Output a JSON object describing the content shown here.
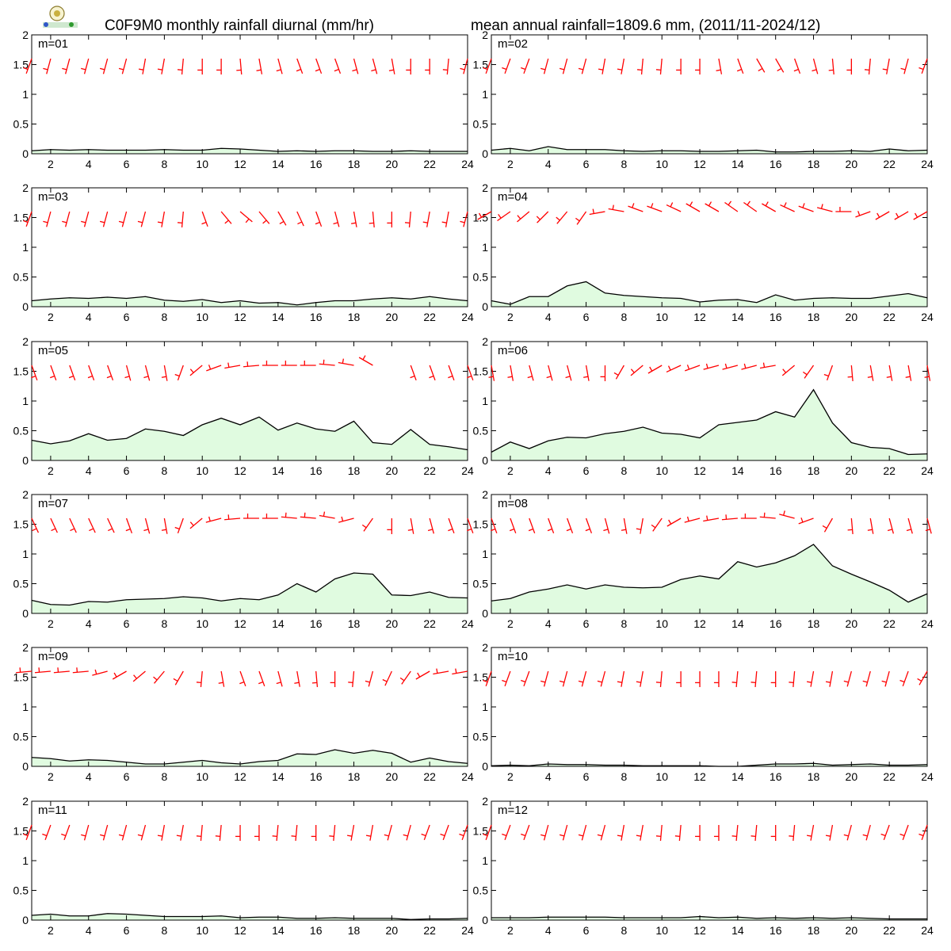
{
  "figure": {
    "title_left": "C0F9M0 monthly rainfall diurnal (mm/hr)",
    "title_right": "mean annual rainfall=1809.6 mm, (2011/11-2024/12)",
    "logo": "lab-logo",
    "colors": {
      "fill": "#e0fbe0",
      "line": "#000000",
      "barb": "#ff0000",
      "frame": "#000000"
    }
  },
  "chart_data": [
    {
      "type": "area",
      "label": "m=01",
      "x": [
        1,
        2,
        3,
        4,
        5,
        6,
        7,
        8,
        9,
        10,
        11,
        12,
        13,
        14,
        15,
        16,
        17,
        18,
        19,
        20,
        21,
        22,
        23,
        24
      ],
      "xlim": [
        1,
        24
      ],
      "ylim": [
        0,
        2
      ],
      "xticks": [
        2,
        4,
        6,
        8,
        10,
        12,
        14,
        16,
        18,
        20,
        22,
        24
      ],
      "yticks": [
        0,
        0.5,
        1,
        1.5,
        2
      ],
      "series": [
        {
          "values": [
            0.05,
            0.07,
            0.06,
            0.07,
            0.06,
            0.06,
            0.06,
            0.07,
            0.06,
            0.06,
            0.09,
            0.08,
            0.06,
            0.04,
            0.05,
            0.04,
            0.05,
            0.05,
            0.04,
            0.04,
            0.05,
            0.04,
            0.04,
            0.04
          ]
        }
      ],
      "wind_dir_deg": [
        200,
        195,
        195,
        195,
        195,
        195,
        190,
        190,
        185,
        180,
        180,
        175,
        170,
        165,
        160,
        160,
        160,
        165,
        165,
        170,
        180,
        180,
        185,
        195
      ]
    },
    {
      "type": "area",
      "label": "m=02",
      "x": [
        1,
        2,
        3,
        4,
        5,
        6,
        7,
        8,
        9,
        10,
        11,
        12,
        13,
        14,
        15,
        16,
        17,
        18,
        19,
        20,
        21,
        22,
        23,
        24
      ],
      "xlim": [
        1,
        24
      ],
      "ylim": [
        0,
        2
      ],
      "xticks": [
        2,
        4,
        6,
        8,
        10,
        12,
        14,
        16,
        18,
        20,
        22,
        24
      ],
      "yticks": [
        0,
        0.5,
        1,
        1.5,
        2
      ],
      "series": [
        {
          "values": [
            0.06,
            0.09,
            0.05,
            0.12,
            0.07,
            0.07,
            0.07,
            0.05,
            0.04,
            0.05,
            0.05,
            0.04,
            0.04,
            0.05,
            0.06,
            0.03,
            0.03,
            0.04,
            0.04,
            0.05,
            0.04,
            0.08,
            0.05,
            0.06
          ]
        }
      ],
      "wind_dir_deg": [
        200,
        200,
        200,
        195,
        195,
        195,
        190,
        190,
        185,
        185,
        180,
        180,
        170,
        160,
        150,
        150,
        160,
        165,
        175,
        180,
        185,
        190,
        195,
        200
      ]
    },
    {
      "type": "area",
      "label": "m=03",
      "x": [
        1,
        2,
        3,
        4,
        5,
        6,
        7,
        8,
        9,
        10,
        11,
        12,
        13,
        14,
        15,
        16,
        17,
        18,
        19,
        20,
        21,
        22,
        23,
        24
      ],
      "xlim": [
        1,
        24
      ],
      "ylim": [
        0,
        2
      ],
      "xticks": [
        2,
        4,
        6,
        8,
        10,
        12,
        14,
        16,
        18,
        20,
        22,
        24
      ],
      "yticks": [
        0,
        0.5,
        1,
        1.5,
        2
      ],
      "series": [
        {
          "values": [
            0.1,
            0.13,
            0.15,
            0.14,
            0.16,
            0.14,
            0.17,
            0.11,
            0.09,
            0.12,
            0.07,
            0.1,
            0.06,
            0.07,
            0.03,
            0.07,
            0.1,
            0.1,
            0.13,
            0.15,
            0.13,
            0.17,
            0.13,
            0.1
          ]
        }
      ],
      "wind_dir_deg": [
        200,
        195,
        195,
        195,
        195,
        195,
        195,
        190,
        185,
        160,
        140,
        130,
        140,
        150,
        155,
        160,
        165,
        170,
        175,
        180,
        185,
        190,
        190,
        195
      ]
    },
    {
      "type": "area",
      "label": "m=04",
      "x": [
        1,
        2,
        3,
        4,
        5,
        6,
        7,
        8,
        9,
        10,
        11,
        12,
        13,
        14,
        15,
        16,
        17,
        18,
        19,
        20,
        21,
        22,
        23,
        24
      ],
      "xlim": [
        1,
        24
      ],
      "ylim": [
        0,
        2
      ],
      "xticks": [
        2,
        4,
        6,
        8,
        10,
        12,
        14,
        16,
        18,
        20,
        22,
        24
      ],
      "yticks": [
        0,
        0.5,
        1,
        1.5,
        2
      ],
      "series": [
        {
          "values": [
            0.1,
            0.04,
            0.17,
            0.17,
            0.35,
            0.42,
            0.23,
            0.19,
            0.17,
            0.15,
            0.14,
            0.08,
            0.11,
            0.12,
            0.07,
            0.2,
            0.11,
            0.14,
            0.15,
            0.14,
            0.14,
            0.18,
            0.22,
            0.15
          ]
        }
      ],
      "wind_dir_deg": [
        240,
        235,
        230,
        225,
        220,
        215,
        260,
        280,
        290,
        290,
        295,
        300,
        300,
        305,
        305,
        300,
        295,
        290,
        285,
        270,
        250,
        240,
        240,
        240
      ]
    },
    {
      "type": "area",
      "label": "m=05",
      "x": [
        1,
        2,
        3,
        4,
        5,
        6,
        7,
        8,
        9,
        10,
        11,
        12,
        13,
        14,
        15,
        16,
        17,
        18,
        19,
        20,
        21,
        22,
        23,
        24
      ],
      "xlim": [
        1,
        24
      ],
      "ylim": [
        0,
        2
      ],
      "xticks": [
        2,
        4,
        6,
        8,
        10,
        12,
        14,
        16,
        18,
        20,
        22,
        24
      ],
      "yticks": [
        0,
        0.5,
        1,
        1.5,
        2
      ],
      "series": [
        {
          "values": [
            0.34,
            0.28,
            0.33,
            0.45,
            0.34,
            0.37,
            0.53,
            0.49,
            0.42,
            0.6,
            0.71,
            0.6,
            0.73,
            0.51,
            0.63,
            0.53,
            0.49,
            0.66,
            0.3,
            0.27,
            0.52,
            0.27,
            0.23,
            0.18
          ]
        }
      ],
      "wind_dir_deg": [
        160,
        160,
        160,
        160,
        160,
        165,
        165,
        170,
        200,
        230,
        250,
        260,
        265,
        270,
        270,
        270,
        275,
        280,
        300,
        null,
        160,
        160,
        160,
        160
      ]
    },
    {
      "type": "area",
      "label": "m=06",
      "x": [
        1,
        2,
        3,
        4,
        5,
        6,
        7,
        8,
        9,
        10,
        11,
        12,
        13,
        14,
        15,
        16,
        17,
        18,
        19,
        20,
        21,
        22,
        23,
        24
      ],
      "xlim": [
        1,
        24
      ],
      "ylim": [
        0,
        2
      ],
      "xticks": [
        2,
        4,
        6,
        8,
        10,
        12,
        14,
        16,
        18,
        20,
        22,
        24
      ],
      "yticks": [
        0,
        0.5,
        1,
        1.5,
        2
      ],
      "series": [
        {
          "values": [
            0.14,
            0.31,
            0.2,
            0.33,
            0.39,
            0.38,
            0.45,
            0.49,
            0.56,
            0.46,
            0.44,
            0.38,
            0.6,
            0.64,
            0.68,
            0.82,
            0.73,
            1.19,
            0.63,
            0.3,
            0.22,
            0.2,
            0.1,
            0.11
          ]
        }
      ],
      "wind_dir_deg": [
        170,
        170,
        165,
        165,
        165,
        170,
        180,
        210,
        230,
        240,
        245,
        250,
        255,
        255,
        255,
        260,
        230,
        215,
        200,
        175,
        170,
        170,
        170,
        170
      ]
    },
    {
      "type": "area",
      "label": "m=07",
      "x": [
        1,
        2,
        3,
        4,
        5,
        6,
        7,
        8,
        9,
        10,
        11,
        12,
        13,
        14,
        15,
        16,
        17,
        18,
        19,
        20,
        21,
        22,
        23,
        24
      ],
      "xlim": [
        1,
        24
      ],
      "ylim": [
        0,
        2
      ],
      "xticks": [
        2,
        4,
        6,
        8,
        10,
        12,
        14,
        16,
        18,
        20,
        22,
        24
      ],
      "yticks": [
        0,
        0.5,
        1,
        1.5,
        2
      ],
      "series": [
        {
          "values": [
            0.22,
            0.15,
            0.14,
            0.2,
            0.19,
            0.23,
            0.24,
            0.25,
            0.28,
            0.26,
            0.21,
            0.25,
            0.23,
            0.31,
            0.5,
            0.36,
            0.58,
            0.68,
            0.66,
            0.31,
            0.3,
            0.36,
            0.27,
            0.26
          ]
        }
      ],
      "wind_dir_deg": [
        155,
        155,
        155,
        155,
        155,
        160,
        165,
        170,
        200,
        230,
        255,
        265,
        270,
        270,
        275,
        275,
        280,
        255,
        215,
        180,
        170,
        165,
        160,
        160
      ]
    },
    {
      "type": "area",
      "label": "m=08",
      "x": [
        1,
        2,
        3,
        4,
        5,
        6,
        7,
        8,
        9,
        10,
        11,
        12,
        13,
        14,
        15,
        16,
        17,
        18,
        19,
        20,
        21,
        22,
        23,
        24
      ],
      "xlim": [
        1,
        24
      ],
      "ylim": [
        0,
        2
      ],
      "xticks": [
        2,
        4,
        6,
        8,
        10,
        12,
        14,
        16,
        18,
        20,
        22,
        24
      ],
      "yticks": [
        0,
        0.5,
        1,
        1.5,
        2
      ],
      "series": [
        {
          "values": [
            0.21,
            0.25,
            0.36,
            0.41,
            0.48,
            0.41,
            0.48,
            0.44,
            0.43,
            0.44,
            0.57,
            0.63,
            0.58,
            0.87,
            0.78,
            0.85,
            0.97,
            1.16,
            0.8,
            0.66,
            0.53,
            0.39,
            0.19,
            0.33
          ]
        }
      ],
      "wind_dir_deg": [
        160,
        160,
        160,
        160,
        160,
        160,
        165,
        170,
        190,
        215,
        240,
        255,
        260,
        265,
        270,
        275,
        285,
        250,
        210,
        175,
        170,
        165,
        165,
        165
      ]
    },
    {
      "type": "area",
      "label": "m=09",
      "x": [
        1,
        2,
        3,
        4,
        5,
        6,
        7,
        8,
        9,
        10,
        11,
        12,
        13,
        14,
        15,
        16,
        17,
        18,
        19,
        20,
        21,
        22,
        23,
        24
      ],
      "xlim": [
        1,
        24
      ],
      "ylim": [
        0,
        2
      ],
      "xticks": [
        2,
        4,
        6,
        8,
        10,
        12,
        14,
        16,
        18,
        20,
        22,
        24
      ],
      "yticks": [
        0,
        0.5,
        1,
        1.5,
        2
      ],
      "series": [
        {
          "values": [
            0.15,
            0.13,
            0.09,
            0.11,
            0.1,
            0.07,
            0.04,
            0.04,
            0.07,
            0.1,
            0.06,
            0.04,
            0.08,
            0.1,
            0.21,
            0.2,
            0.28,
            0.22,
            0.27,
            0.22,
            0.07,
            0.14,
            0.08,
            0.05
          ]
        }
      ],
      "wind_dir_deg": [
        265,
        265,
        265,
        265,
        255,
        240,
        230,
        220,
        210,
        185,
        170,
        160,
        160,
        165,
        170,
        175,
        180,
        185,
        195,
        205,
        215,
        240,
        260,
        260
      ]
    },
    {
      "type": "area",
      "label": "m=10",
      "x": [
        1,
        2,
        3,
        4,
        5,
        6,
        7,
        8,
        9,
        10,
        11,
        12,
        13,
        14,
        15,
        16,
        17,
        18,
        19,
        20,
        21,
        22,
        23,
        24
      ],
      "xlim": [
        1,
        24
      ],
      "ylim": [
        0,
        2
      ],
      "xticks": [
        2,
        4,
        6,
        8,
        10,
        12,
        14,
        16,
        18,
        20,
        22,
        24
      ],
      "yticks": [
        0,
        0.5,
        1,
        1.5,
        2
      ],
      "series": [
        {
          "values": [
            0.01,
            0.02,
            0.01,
            0.04,
            0.03,
            0.03,
            0.02,
            0.02,
            0.01,
            0.01,
            0.01,
            0.01,
            0.0,
            0.0,
            0.02,
            0.04,
            0.04,
            0.05,
            0.02,
            0.03,
            0.04,
            0.02,
            0.02,
            0.03
          ]
        }
      ],
      "wind_dir_deg": [
        200,
        200,
        200,
        195,
        195,
        195,
        195,
        190,
        190,
        185,
        180,
        180,
        180,
        185,
        185,
        180,
        185,
        190,
        190,
        195,
        195,
        195,
        200,
        210
      ]
    },
    {
      "type": "area",
      "label": "m=11",
      "x": [
        1,
        2,
        3,
        4,
        5,
        6,
        7,
        8,
        9,
        10,
        11,
        12,
        13,
        14,
        15,
        16,
        17,
        18,
        19,
        20,
        21,
        22,
        23,
        24
      ],
      "xlim": [
        1,
        24
      ],
      "ylim": [
        0,
        2
      ],
      "xticks": [
        2,
        4,
        6,
        8,
        10,
        12,
        14,
        16,
        18,
        20,
        22,
        24
      ],
      "yticks": [
        0,
        0.5,
        1,
        1.5,
        2
      ],
      "series": [
        {
          "values": [
            0.08,
            0.1,
            0.07,
            0.07,
            0.11,
            0.1,
            0.08,
            0.06,
            0.06,
            0.06,
            0.07,
            0.04,
            0.05,
            0.05,
            0.03,
            0.03,
            0.04,
            0.03,
            0.03,
            0.03,
            0.01,
            0.02,
            0.02,
            0.03
          ]
        }
      ],
      "wind_dir_deg": [
        200,
        200,
        200,
        195,
        195,
        195,
        195,
        190,
        190,
        185,
        185,
        180,
        180,
        185,
        185,
        180,
        185,
        190,
        190,
        195,
        195,
        200,
        200,
        200
      ]
    },
    {
      "type": "area",
      "label": "m=12",
      "x": [
        1,
        2,
        3,
        4,
        5,
        6,
        7,
        8,
        9,
        10,
        11,
        12,
        13,
        14,
        15,
        16,
        17,
        18,
        19,
        20,
        21,
        22,
        23,
        24
      ],
      "xlim": [
        1,
        24
      ],
      "ylim": [
        0,
        2
      ],
      "xticks": [
        2,
        4,
        6,
        8,
        10,
        12,
        14,
        16,
        18,
        20,
        22,
        24
      ],
      "yticks": [
        0,
        0.5,
        1,
        1.5,
        2
      ],
      "series": [
        {
          "values": [
            0.04,
            0.04,
            0.04,
            0.05,
            0.05,
            0.05,
            0.05,
            0.04,
            0.04,
            0.04,
            0.04,
            0.06,
            0.04,
            0.05,
            0.03,
            0.04,
            0.03,
            0.04,
            0.03,
            0.04,
            0.03,
            0.02,
            0.02,
            0.02
          ]
        }
      ],
      "wind_dir_deg": [
        200,
        200,
        200,
        195,
        195,
        195,
        195,
        190,
        190,
        185,
        185,
        180,
        180,
        185,
        185,
        180,
        185,
        190,
        190,
        195,
        195,
        200,
        200,
        200
      ]
    }
  ]
}
